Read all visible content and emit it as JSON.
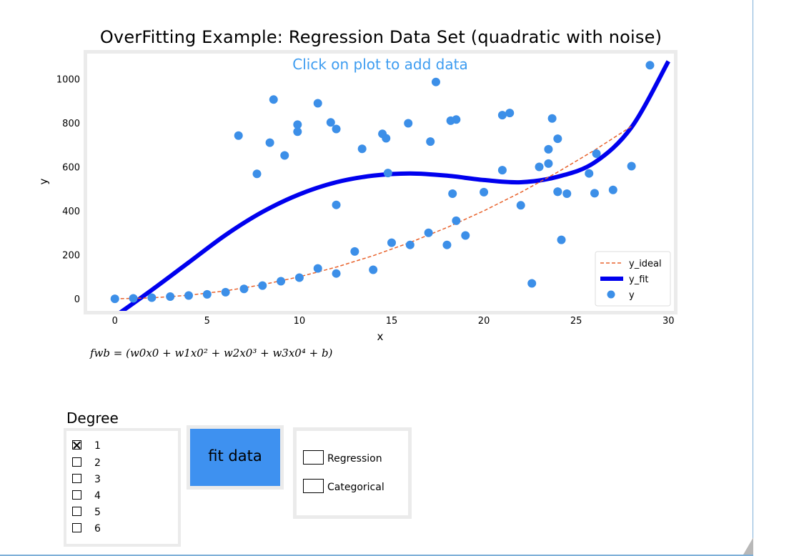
{
  "chart_data": {
    "type": "scatter",
    "title": "OverFitting Example: Regression Data Set (quadratic with noise)",
    "annotation": "Click on plot to add data",
    "xlabel": "x",
    "ylabel": "y",
    "xlim": [
      -1.5,
      30.3
    ],
    "ylim": [
      -55,
      1115
    ],
    "xticks": [
      0,
      5,
      10,
      15,
      20,
      25,
      30
    ],
    "yticks": [
      0,
      200,
      400,
      600,
      800,
      1000
    ],
    "grid": false,
    "legend_position": "lower-right",
    "series": [
      {
        "name": "y_ideal",
        "kind": "line",
        "style": "dashed",
        "color": "#e8622c",
        "x": [
          0,
          2,
          4,
          6,
          8,
          10,
          12,
          14,
          16,
          18,
          20,
          22,
          24,
          26,
          28
        ],
        "y": [
          0,
          4,
          16,
          36,
          64,
          100,
          144,
          196,
          256,
          324,
          400,
          484,
          576,
          676,
          784
        ]
      },
      {
        "name": "y_fit",
        "kind": "line",
        "style": "solid",
        "color": "#0000ee",
        "x": [
          0,
          2,
          4,
          6,
          8,
          10,
          12,
          14,
          16,
          18,
          20,
          22,
          24,
          26,
          28,
          30
        ],
        "y": [
          -80,
          40,
          165,
          290,
          395,
          475,
          530,
          560,
          570,
          560,
          540,
          530,
          555,
          620,
          780,
          1080
        ]
      },
      {
        "name": "y",
        "kind": "scatter",
        "color": "#3c8fe8",
        "x": [
          0,
          1,
          2,
          3,
          4,
          5,
          6,
          7,
          8,
          9,
          10,
          11,
          12,
          13,
          14,
          15,
          16,
          17,
          18,
          18.5,
          19,
          20,
          21,
          22,
          22.6,
          23,
          23.5,
          24,
          24.2,
          24.5,
          25.7,
          26,
          27,
          28,
          29,
          6.7,
          7.7,
          8.4,
          8.6,
          9.2,
          9.9,
          9.9,
          11,
          11.7,
          12,
          12,
          13.4,
          14.5,
          14.7,
          14.8,
          15.9,
          17.1,
          17.4,
          18.2,
          18.3,
          18.5,
          21,
          21.4,
          23.5,
          23.7,
          24,
          24,
          26.1
        ],
        "y": [
          0,
          2,
          5,
          10,
          15,
          20,
          30,
          45,
          60,
          80,
          96,
          138,
          115,
          215,
          132,
          255,
          245,
          300,
          245,
          355,
          288,
          485,
          585,
          425,
          70,
          600,
          615,
          487,
          268,
          478,
          570,
          480,
          495,
          603,
          1062,
          742,
          568,
          710,
          906,
          652,
          792,
          760,
          889,
          802,
          772,
          427,
          682,
          750,
          730,
          572,
          798,
          715,
          986,
          810,
          478,
          815,
          835,
          845,
          680,
          820,
          728,
          487,
          660
        ]
      }
    ]
  },
  "formula_text": "fwb = (w0x0 + w1x0² + w2x0³ + w3x0⁴ + b)",
  "degree": {
    "title": "Degree",
    "options": [
      "1",
      "2",
      "3",
      "4",
      "5",
      "6"
    ],
    "selected": "1"
  },
  "fit_button_label": "fit data",
  "type_options": [
    "Regression",
    "Categorical"
  ]
}
